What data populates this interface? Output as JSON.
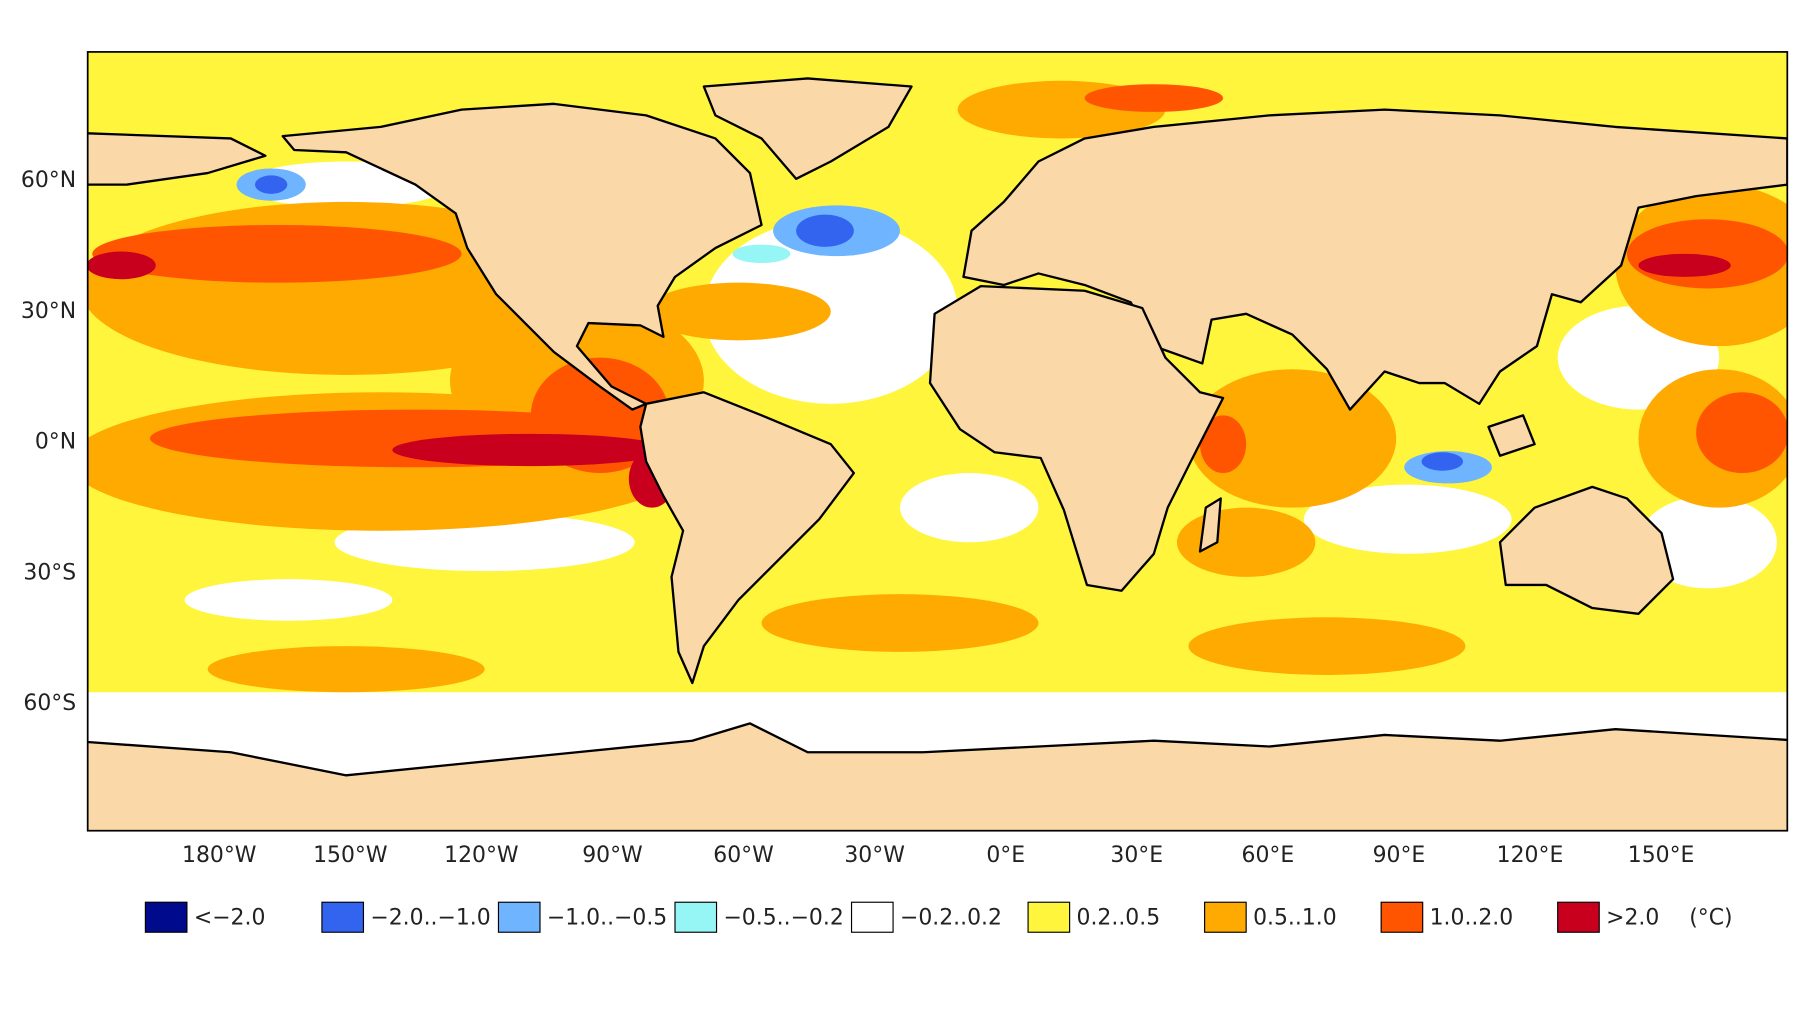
{
  "map": {
    "lat_labels": [
      "60°N",
      "30°N",
      "0°N",
      "30°S",
      "60°S"
    ],
    "lon_labels": [
      "180°W",
      "150°W",
      "120°W",
      "90°W",
      "60°W",
      "30°W",
      "0°E",
      "30°E",
      "60°E",
      "90°E",
      "120°E",
      "150°E"
    ],
    "legend": [
      {
        "label": "<−2.0",
        "color": "#000a8c"
      },
      {
        "label": "−2.0..−1.0",
        "color": "#3264f0"
      },
      {
        "label": "−1.0..−0.5",
        "color": "#6eb4ff"
      },
      {
        "label": "−0.5..−0.2",
        "color": "#96f5f5"
      },
      {
        "label": "−0.2..0.2",
        "color": "#ffffff"
      },
      {
        "label": "0.2..0.5",
        "color": "#fff53c"
      },
      {
        "label": "0.5..1.0",
        "color": "#ffaa00"
      },
      {
        "label": "1.0..2.0",
        "color": "#ff5500"
      },
      {
        "label": ">2.0",
        "color": "#c8001e"
      }
    ],
    "unit": "(°C)"
  }
}
